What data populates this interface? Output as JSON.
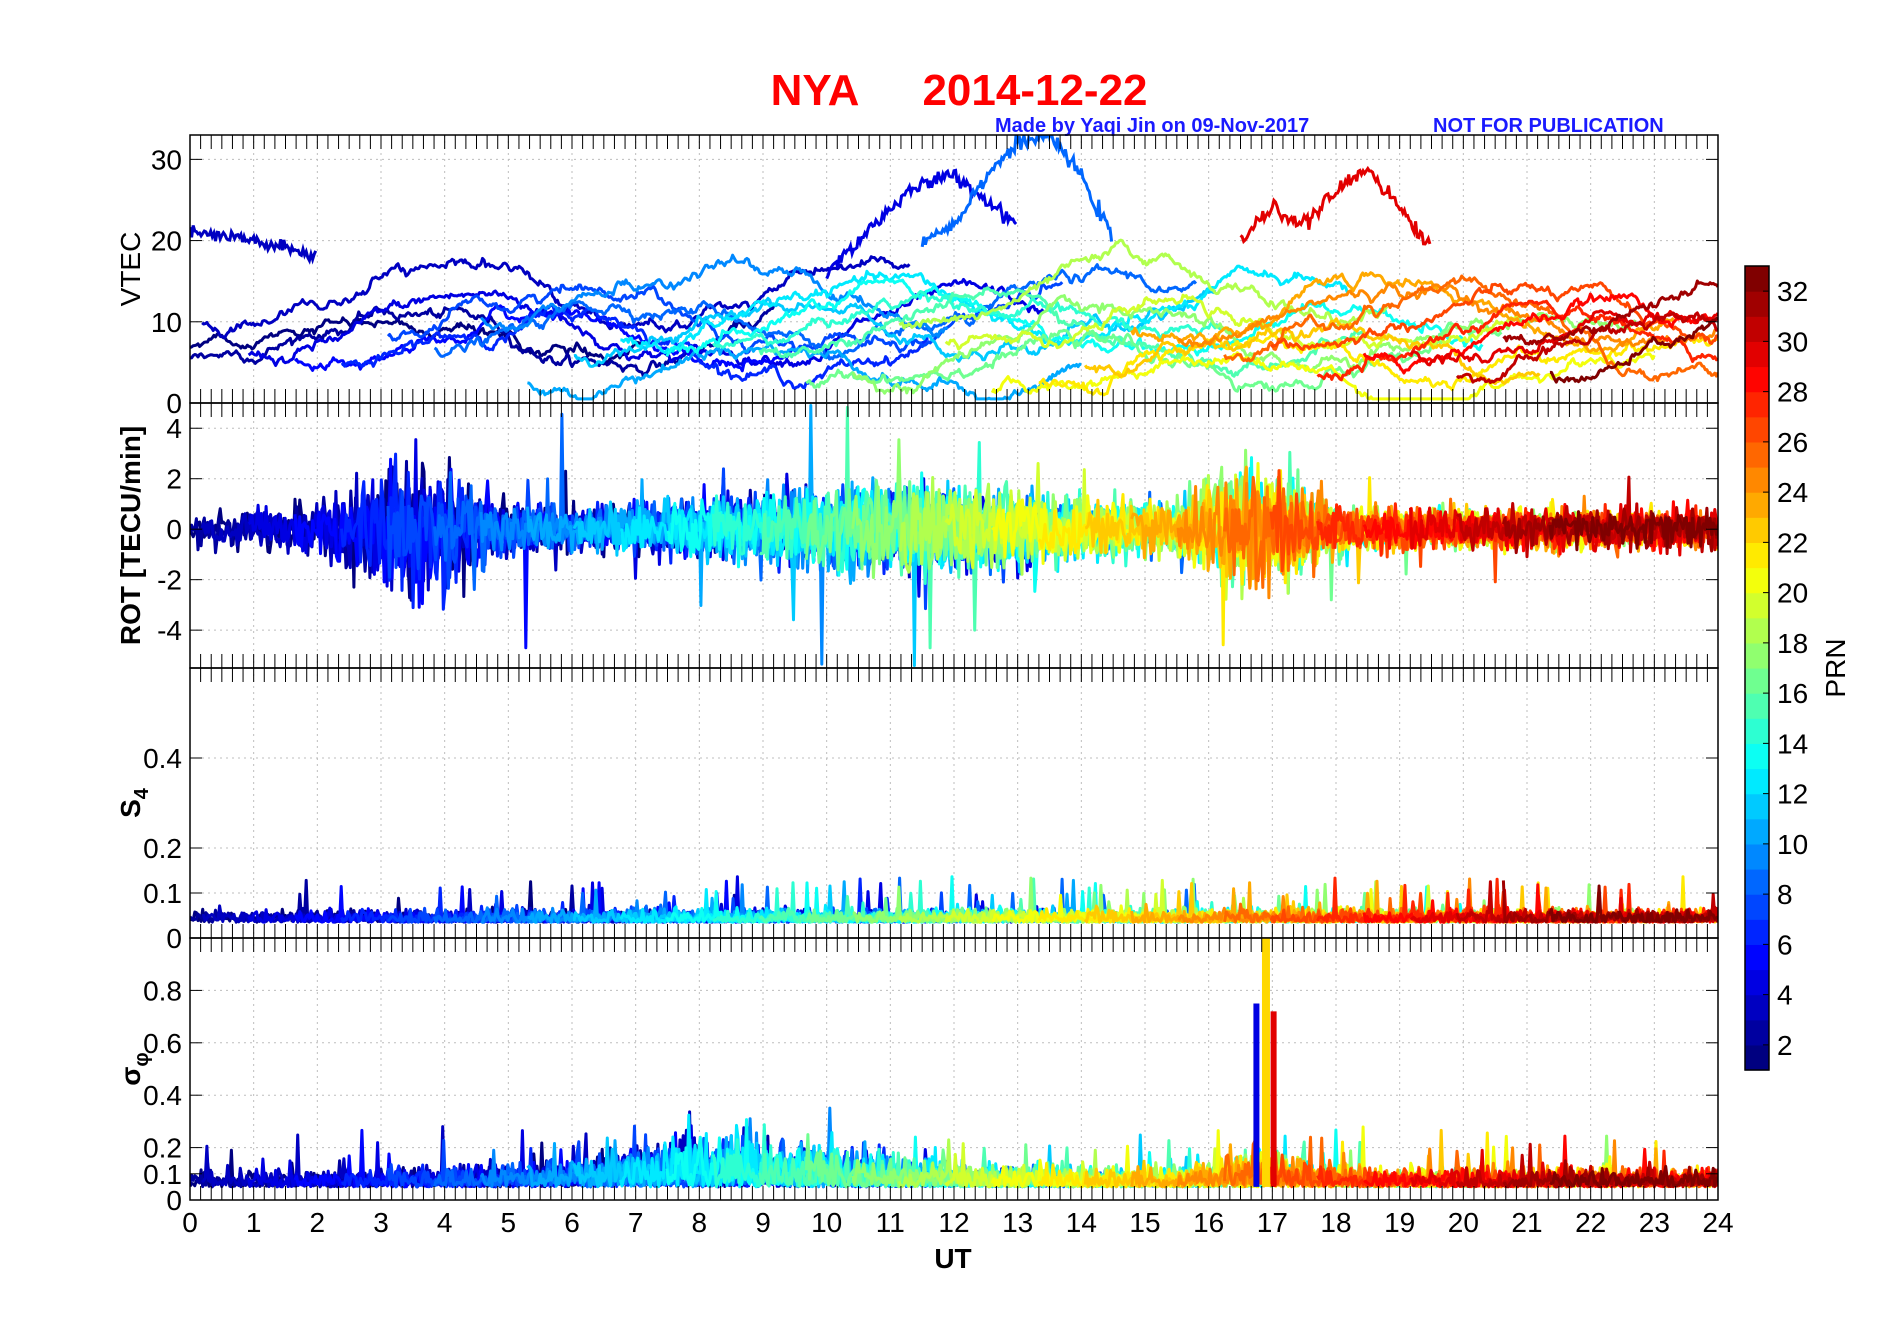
{
  "chart_data": {
    "type": "line",
    "title": {
      "station": "NYA",
      "date": "2014-12-22"
    },
    "credit": "Made by Yaqi Jin on 09-Nov-2017",
    "notice": "NOT FOR PUBLICATION",
    "xlabel": "UT",
    "xlim": [
      0,
      24
    ],
    "xticks": [
      "0",
      "1",
      "2",
      "3",
      "4",
      "5",
      "6",
      "7",
      "8",
      "9",
      "10",
      "11",
      "12",
      "13",
      "14",
      "15",
      "16",
      "17",
      "18",
      "19",
      "20",
      "21",
      "22",
      "23",
      "24"
    ],
    "panels": [
      {
        "id": "vtec",
        "ylabel": "VTEC",
        "ylim": [
          0,
          33
        ],
        "yticks": [
          0,
          10,
          20,
          30
        ],
        "ytick_labels": [
          "0",
          "10",
          "20",
          "30"
        ],
        "grid": true
      },
      {
        "id": "rot",
        "ylabel": "ROT [TECU/min]",
        "ylim": [
          -5.5,
          5
        ],
        "yticks": [
          -4,
          -2,
          0,
          2,
          4
        ],
        "ytick_labels": [
          "-4",
          "-2",
          "0",
          "2",
          "4"
        ],
        "grid": true
      },
      {
        "id": "s4",
        "ylabel": "S",
        "ylabel_sub": "4",
        "ylim": [
          0,
          0.6
        ],
        "yticks": [
          0,
          0.1,
          0.2,
          0.4
        ],
        "ytick_labels": [
          "0",
          "0.1",
          "0.2",
          "0.4"
        ],
        "grid": true
      },
      {
        "id": "sigma",
        "ylabel": "σ",
        "ylabel_sub": "φ",
        "ylim": [
          0,
          1
        ],
        "yticks": [
          0,
          0.1,
          0.2,
          0.4,
          0.6,
          0.8
        ],
        "ytick_labels": [
          "0",
          "0.1",
          "0.2",
          "0.4",
          "0.6",
          "0.8"
        ],
        "grid": true
      }
    ],
    "colorbar": {
      "label": "PRN",
      "range": [
        1,
        33
      ],
      "ticks": [
        "2",
        "4",
        "6",
        "8",
        "10",
        "12",
        "14",
        "16",
        "18",
        "20",
        "22",
        "24",
        "26",
        "28",
        "30",
        "32"
      ],
      "colormap": "jet"
    },
    "series_note": "One line per GPS satellite PRN 1-32, coloured by PRN",
    "vtec_features": [
      {
        "prn": 3,
        "desc": "high arc",
        "x": [
          0,
          0.5,
          1,
          1.5,
          2
        ],
        "y": [
          21,
          20.5,
          20,
          19,
          18
        ]
      },
      {
        "prn": 4,
        "desc": "peak",
        "x": [
          10,
          10.5,
          11,
          11.5,
          12,
          12.5,
          13
        ],
        "y": [
          16,
          20,
          24,
          27,
          28,
          25,
          22
        ]
      },
      {
        "prn": 8,
        "desc": "peak",
        "x": [
          11.5,
          12,
          12.5,
          13,
          13.5,
          14,
          14.5
        ],
        "y": [
          20,
          22,
          28,
          32,
          33,
          28,
          20
        ]
      },
      {
        "prn": 29,
        "desc": "evening rise",
        "x": [
          16.5,
          17,
          17.5,
          18,
          18.5,
          19,
          19.5
        ],
        "y": [
          20,
          24,
          22,
          26,
          29,
          24,
          19
        ]
      }
    ],
    "sigma_peak": {
      "x": 16.9,
      "y": 1.0,
      "color": "#ffd800"
    }
  }
}
